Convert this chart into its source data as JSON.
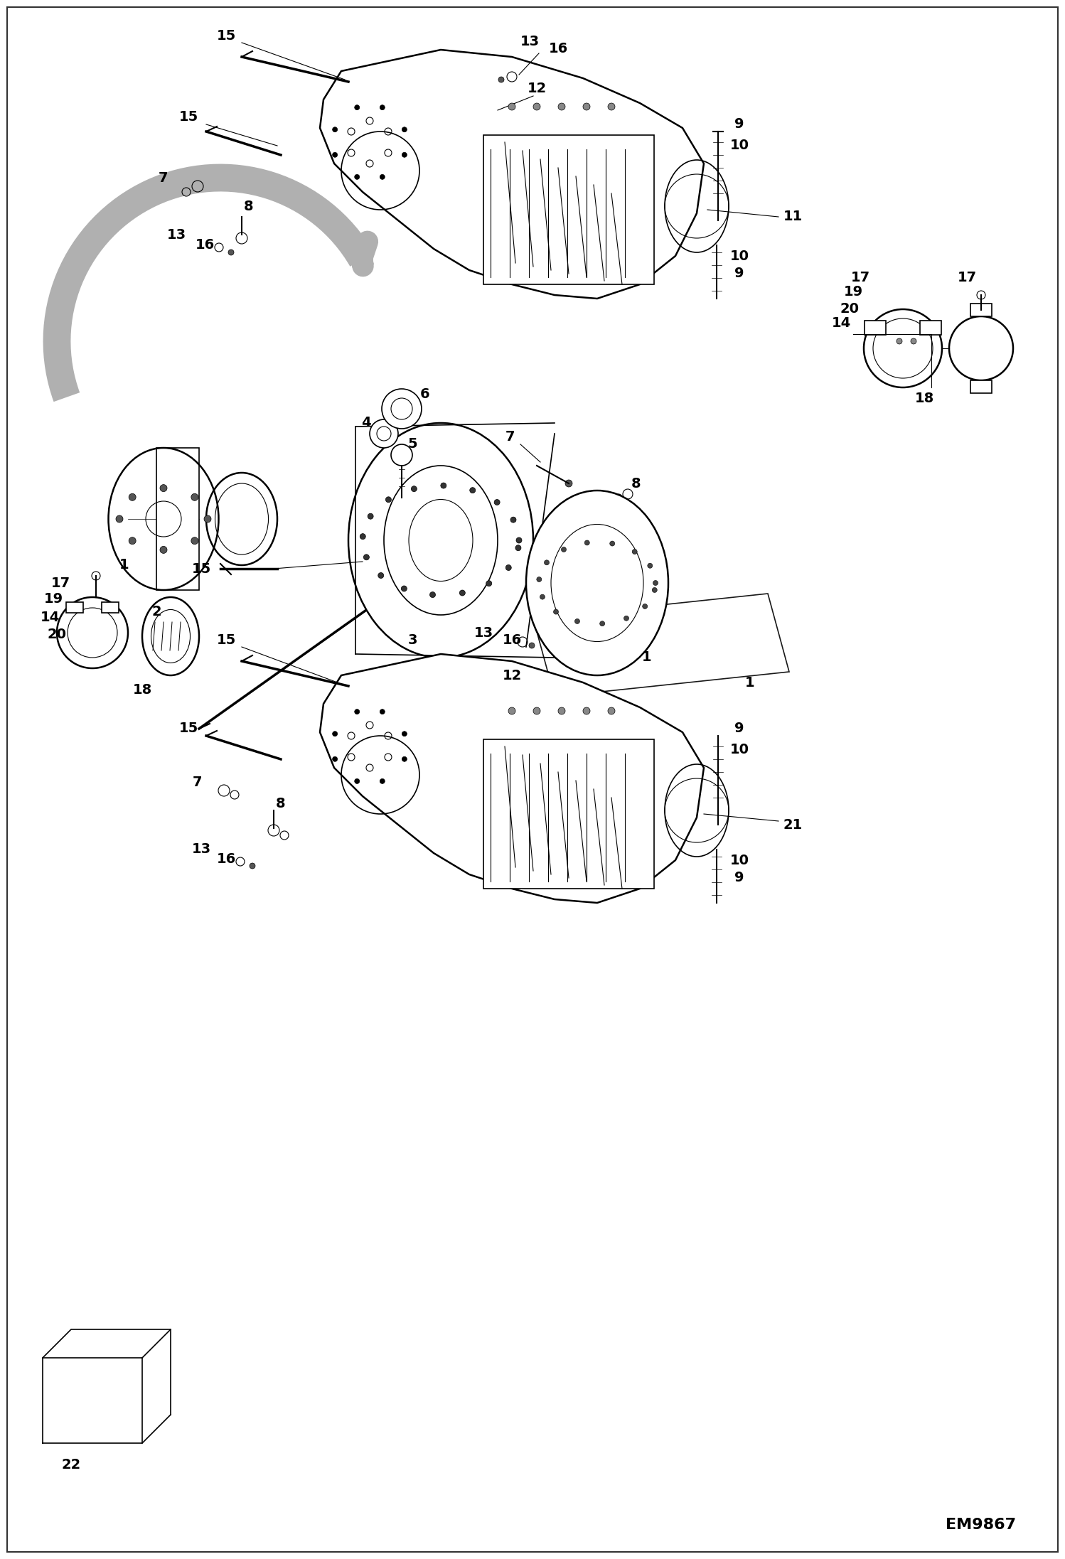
{
  "bg_color": "#ffffff",
  "fig_width": 14.98,
  "fig_height": 21.93,
  "dpi": 100,
  "watermark": "EM9867",
  "arrow_color": "#b0b0b0",
  "line_color": "#000000",
  "part_label_fontsize": 14,
  "watermark_fontsize": 16
}
